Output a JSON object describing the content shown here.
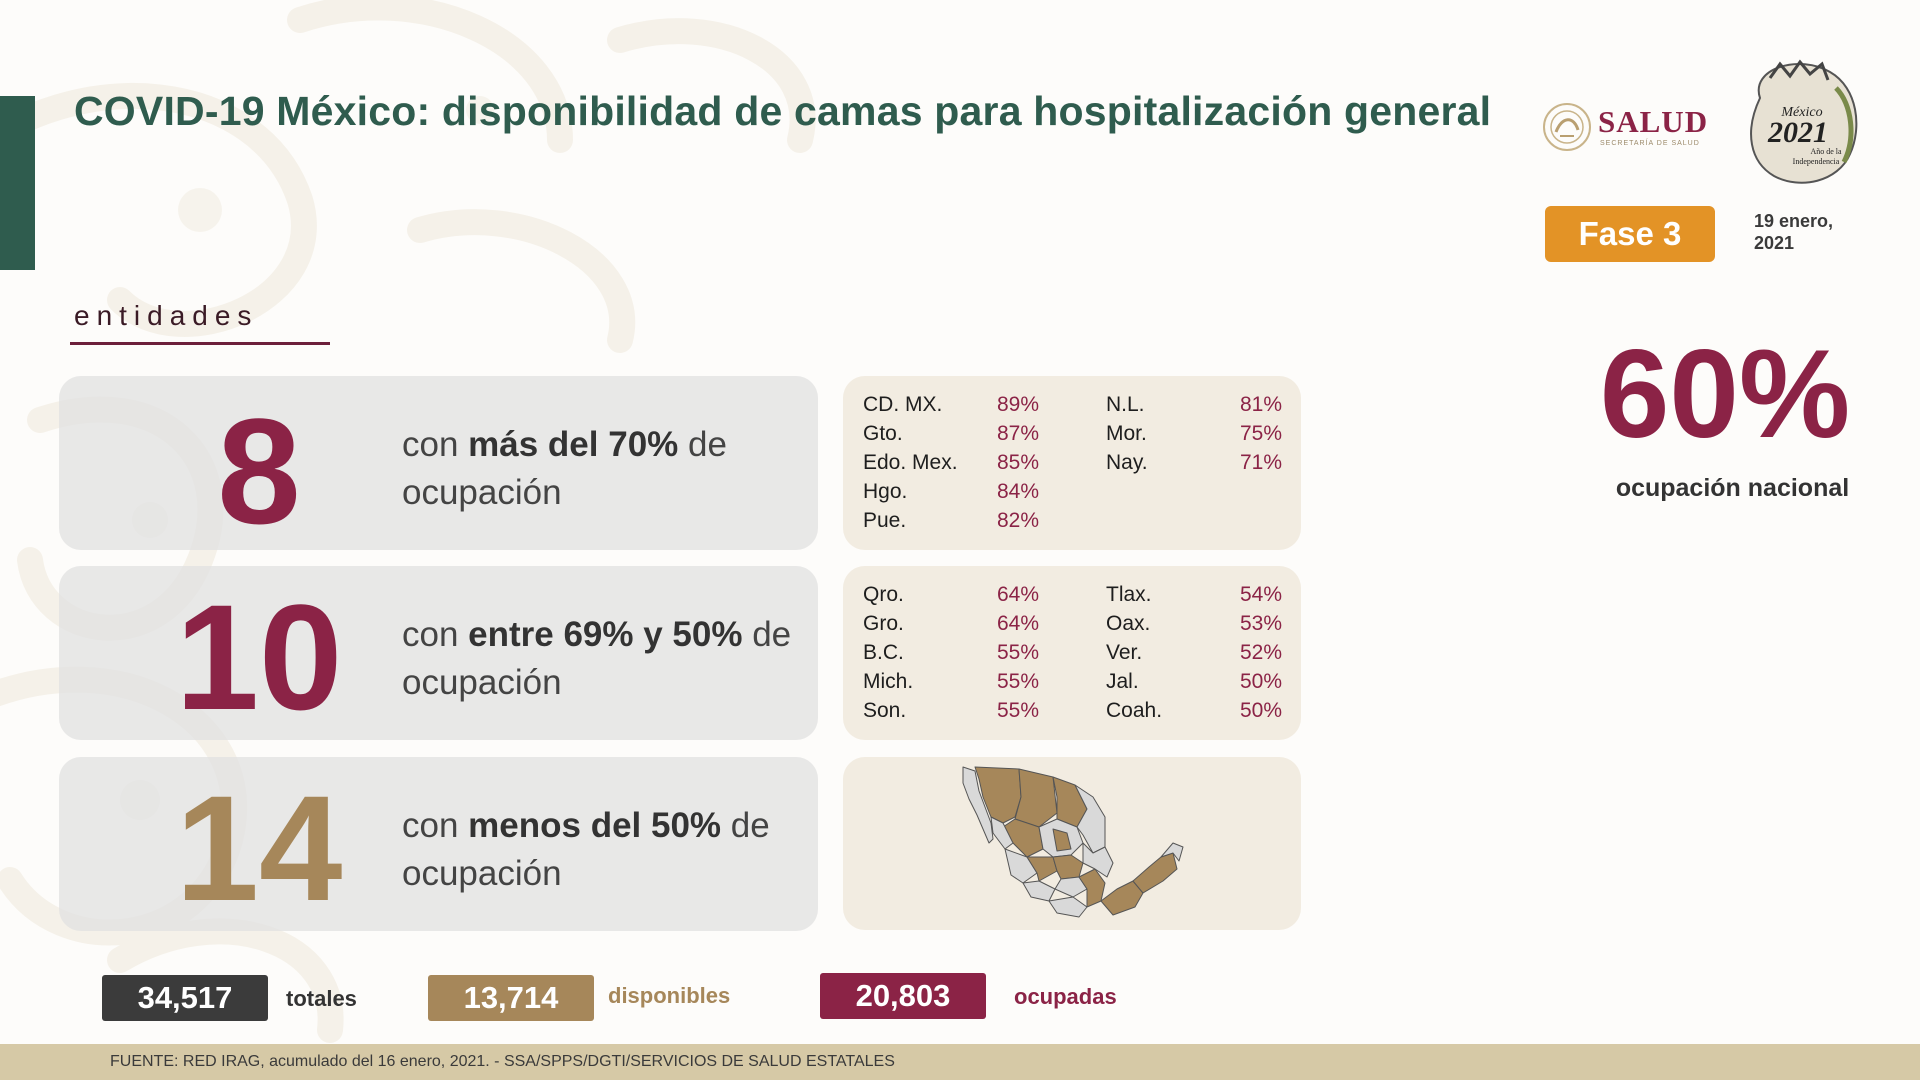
{
  "header": {
    "title": "COVID-19 México: disponibilidad de camas para hospitalización general",
    "logo_salud_text": "SALUD",
    "logo_salud_subtext": "SECRETARÍA DE SALUD",
    "logo_2021_line1": "México",
    "logo_2021_year": "2021",
    "logo_2021_line2": "Año de la",
    "logo_2021_line3": "Independencia",
    "phase_badge": "Fase 3",
    "date_line1": "19 enero,",
    "date_line2": "2021"
  },
  "section_label": "entidades",
  "groups": [
    {
      "count": "8",
      "text_pre": "con ",
      "text_bold": "más del 70%",
      "text_mid": " de",
      "text_line2": "ocupación",
      "color": "#8b2346",
      "col1": [
        {
          "name": "CD. MX.",
          "pct": "89%"
        },
        {
          "name": "Gto.",
          "pct": "87%"
        },
        {
          "name": "Edo. Mex.",
          "pct": "85%"
        },
        {
          "name": "Hgo.",
          "pct": "84%"
        },
        {
          "name": "Pue.",
          "pct": "82%"
        }
      ],
      "col2": [
        {
          "name": "N.L.",
          "pct": "81%"
        },
        {
          "name": "Mor.",
          "pct": "75%"
        },
        {
          "name": "Nay.",
          "pct": "71%"
        }
      ]
    },
    {
      "count": "10",
      "text_pre": "con ",
      "text_bold": "entre 69% y 50%",
      "text_mid": " de",
      "text_line2": "ocupación",
      "color": "#8b2346",
      "col1": [
        {
          "name": "Qro.",
          "pct": "64%"
        },
        {
          "name": "Gro.",
          "pct": "64%"
        },
        {
          "name": "B.C.",
          "pct": "55%"
        },
        {
          "name": "Mich.",
          "pct": "55%"
        },
        {
          "name": "Son.",
          "pct": "55%"
        }
      ],
      "col2": [
        {
          "name": "Tlax.",
          "pct": "54%"
        },
        {
          "name": "Oax.",
          "pct": "53%"
        },
        {
          "name": "Ver.",
          "pct": "52%"
        },
        {
          "name": "Jal.",
          "pct": "50%"
        },
        {
          "name": "Coah.",
          "pct": "50%"
        }
      ]
    },
    {
      "count": "14",
      "text_pre": "con ",
      "text_bold": "menos del 50%",
      "text_mid": " de",
      "text_line2": "ocupación",
      "color": "#a6875a"
    }
  ],
  "totals": {
    "total_value": "34,517",
    "total_label": "totales",
    "available_value": "13,714",
    "available_label": "disponibles",
    "occupied_value": "20,803",
    "occupied_label": "ocupadas"
  },
  "national": {
    "value": "60%",
    "label": "ocupación nacional"
  },
  "footer": "FUENTE: RED IRAG, acumulado del 16 enero, 2021. -  SSA/SPPS/DGTI/SERVICIOS DE SALUD ESTATALES",
  "colors": {
    "green": "#2f5c4e",
    "guinda": "#8b2346",
    "gold": "#a6875a",
    "orange": "#e39326",
    "dark": "#3b3b3b"
  }
}
